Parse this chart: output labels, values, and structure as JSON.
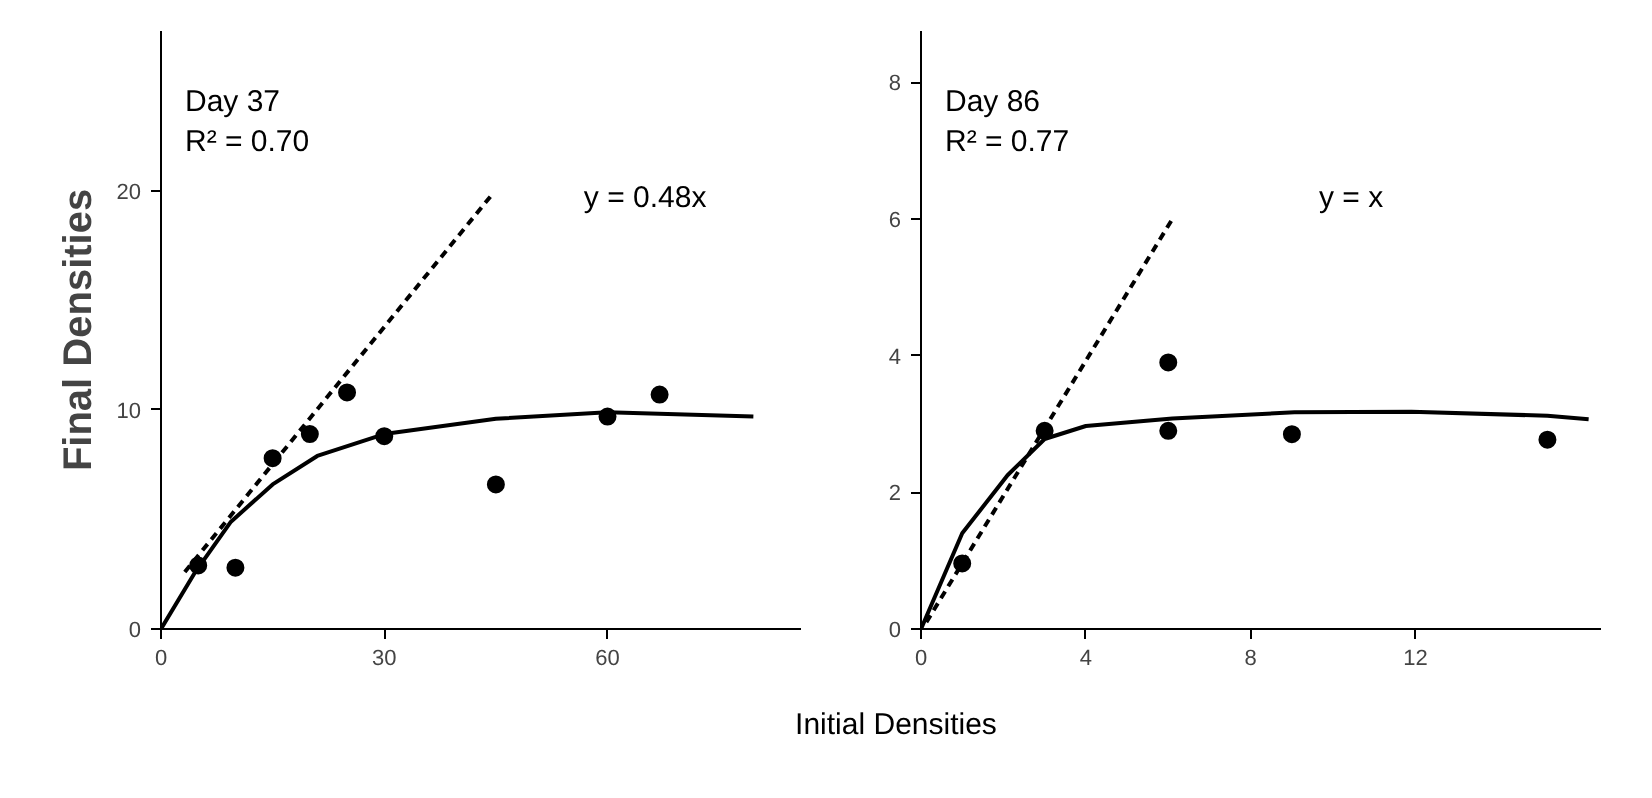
{
  "chart_data": [
    {
      "type": "scatter",
      "ylabel": "Final Densities",
      "xlabel": "Initial Densities",
      "xlim": [
        0,
        86
      ],
      "ylim": [
        0,
        27.3
      ],
      "xticks": [
        0,
        30,
        60
      ],
      "yticks": [
        0,
        10,
        20
      ],
      "grid": false,
      "annotations": [
        "Day 37",
        "R² = 0.70",
        "y = 0.48x"
      ],
      "series": [
        {
          "color": "#000000",
          "marker": "circle",
          "x": [
            5,
            10,
            15,
            20,
            25,
            30,
            45,
            60,
            67
          ],
          "values": [
            2.9,
            2.8,
            7.8,
            8.9,
            10.8,
            8.8,
            6.6,
            9.7,
            10.7
          ]
        },
        {
          "type": "line",
          "color": "#000000",
          "line_style": "solid",
          "x": [
            0,
            4.6,
            9.4,
            15,
            21,
            30,
            45,
            60,
            79.6
          ],
          "values": [
            0,
            2.6,
            4.9,
            6.6,
            7.9,
            8.9,
            9.6,
            9.9,
            9.7
          ]
        },
        {
          "type": "line",
          "color": "#000000",
          "line_style": "dashed",
          "x": [
            3.2,
            44.4
          ],
          "values": [
            2.6,
            19.8
          ]
        }
      ]
    },
    {
      "type": "scatter",
      "xlim": [
        0,
        16.5
      ],
      "ylim": [
        0,
        8.75
      ],
      "xticks": [
        0,
        4,
        8,
        12
      ],
      "yticks": [
        0,
        2,
        4,
        6,
        8
      ],
      "grid": false,
      "annotations": [
        "Day 86",
        "R² = 0.77",
        "y = x"
      ],
      "series": [
        {
          "color": "#000000",
          "marker": "circle",
          "x": [
            1,
            3,
            6,
            6,
            9,
            15.2
          ],
          "values": [
            0.96,
            2.9,
            3.9,
            2.9,
            2.85,
            2.77
          ]
        },
        {
          "type": "line",
          "color": "#000000",
          "line_style": "solid",
          "x": [
            0,
            1,
            2.1,
            3,
            4,
            6.1,
            9.06,
            11.9,
            15.2,
            16.2
          ],
          "values": [
            0,
            1.4,
            2.25,
            2.78,
            2.97,
            3.08,
            3.17,
            3.18,
            3.12,
            3.07
          ]
        },
        {
          "type": "line",
          "color": "#000000",
          "line_style": "dashed",
          "x": [
            0.13,
            6.1
          ],
          "values": [
            0.1,
            6.0
          ]
        }
      ]
    }
  ]
}
